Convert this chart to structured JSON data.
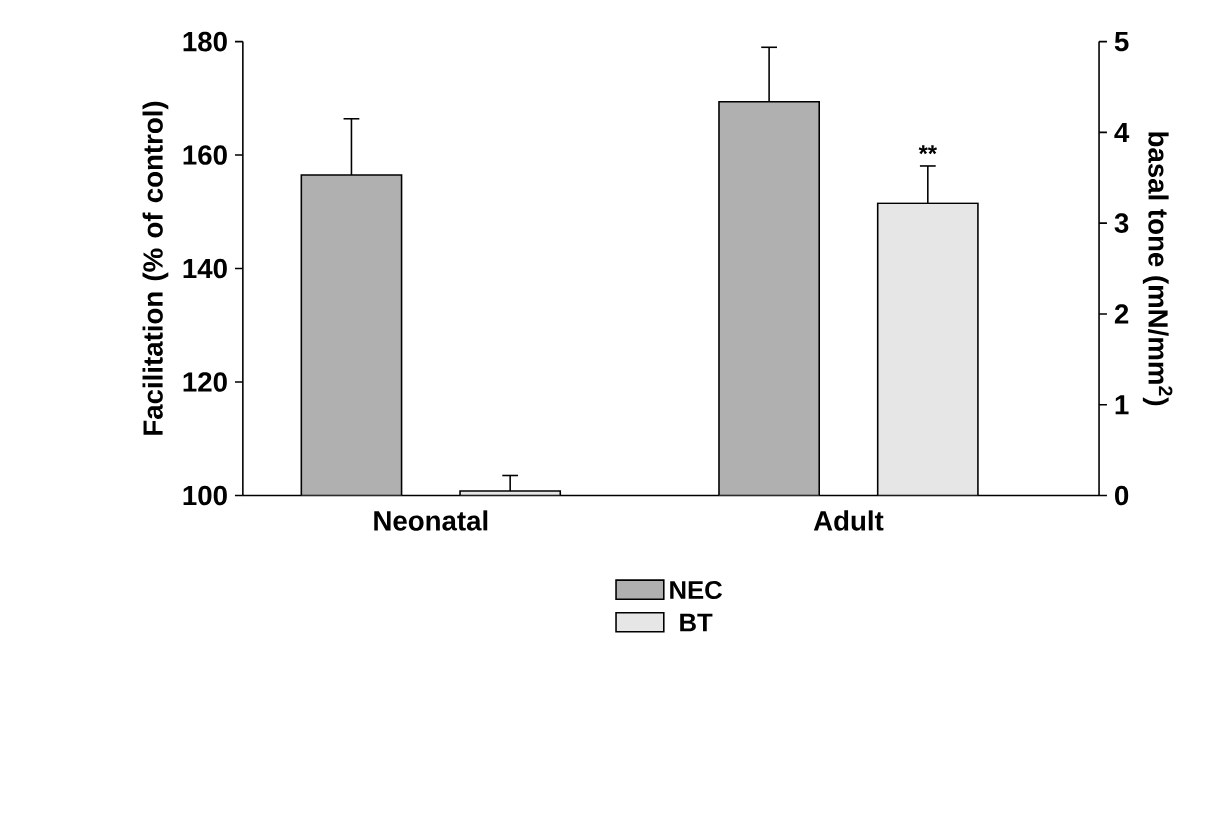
{
  "chart_data": {
    "type": "bar",
    "xlabel": null,
    "ylabel": "Facilitation (% of control)",
    "y2label": "basal tone (mN/mm$^{2}$)",
    "categories": [
      "Neonatal",
      "Adult"
    ],
    "series": [
      {
        "name": "NEC",
        "color": "#b0b0b0",
        "values": [
          156.5,
          169.4
        ],
        "errors": [
          9.9,
          9.6
        ]
      },
      {
        "name": "BT",
        "color": "#e6e6e6",
        "axis": "y2",
        "values": [
          0.05,
          3.22
        ],
        "errors": [
          0.17,
          0.41
        ]
      }
    ],
    "ylim": [
      100,
      180
    ],
    "yticks": [
      100,
      120,
      140,
      160,
      180
    ],
    "y2lim": [
      0,
      5
    ],
    "y2ticks": [
      0,
      1,
      2,
      3,
      4,
      5
    ],
    "annotations": [
      "**"
    ],
    "legend": "bottom",
    "grid": false
  }
}
